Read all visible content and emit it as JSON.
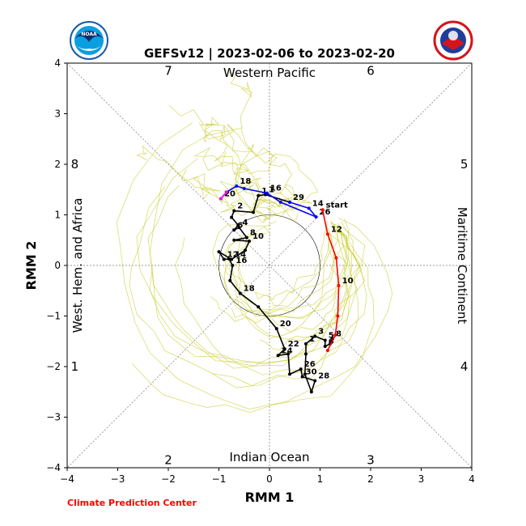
{
  "chart_data": {
    "type": "line",
    "title": "GEFSv12 | 2023-02-06 to 2023-02-20",
    "xlabel": "RMM 1",
    "ylabel": "RMM 2",
    "xlim": [
      -4,
      4
    ],
    "ylim": [
      -4,
      4
    ],
    "xticks": [
      "−4",
      "−3",
      "−2",
      "−1",
      "0",
      "1",
      "2",
      "3",
      "4"
    ],
    "yticks": [
      "−4",
      "−3",
      "−2",
      "−1",
      "0",
      "1",
      "2",
      "3",
      "4"
    ],
    "grid": false,
    "unit_circle_radius": 1,
    "phase_numbers": [
      {
        "label": "7",
        "x": -2.0,
        "y": 3.85
      },
      {
        "label": "6",
        "x": 2.0,
        "y": 3.85
      },
      {
        "label": "5",
        "x": 3.85,
        "y": 2.0
      },
      {
        "label": "4",
        "x": 3.85,
        "y": -2.0
      },
      {
        "label": "3",
        "x": 2.0,
        "y": -3.85
      },
      {
        "label": "2",
        "x": -2.0,
        "y": -3.85
      },
      {
        "label": "1",
        "x": -3.85,
        "y": -2.0
      },
      {
        "label": "8",
        "x": -3.85,
        "y": 2.0
      }
    ],
    "region_labels": {
      "top": "Western Pacific",
      "bottom": "Indian Ocean",
      "left": "West. Hem. and Africa",
      "right": "Maritime Continent"
    },
    "series": [
      {
        "color": "#000000",
        "points": [
          {
            "x": 0.4,
            "y": 1.25,
            "label": "29"
          },
          {
            "x": -0.08,
            "y": 1.4,
            "label": "1"
          },
          {
            "x": -0.22,
            "y": 1.38,
            "label": "1"
          },
          {
            "x": -0.32,
            "y": 1.05,
            "label": ""
          },
          {
            "x": -0.7,
            "y": 1.08,
            "label": "2"
          },
          {
            "x": -0.75,
            "y": 0.95,
            "label": ""
          },
          {
            "x": -0.62,
            "y": 0.8,
            "label": ""
          },
          {
            "x": -0.7,
            "y": 0.7,
            "label": "6"
          },
          {
            "x": -0.6,
            "y": 0.75,
            "label": "4"
          },
          {
            "x": -0.45,
            "y": 0.55,
            "label": "8"
          },
          {
            "x": -0.7,
            "y": 0.5,
            "label": ""
          },
          {
            "x": -0.4,
            "y": 0.48,
            "label": "10"
          },
          {
            "x": -0.48,
            "y": 0.3,
            "label": ""
          },
          {
            "x": -0.75,
            "y": 0.12,
            "label": "14"
          },
          {
            "x": -1.0,
            "y": 0.27,
            "label": ""
          },
          {
            "x": -0.9,
            "y": 0.12,
            "label": "12"
          },
          {
            "x": -0.8,
            "y": 0.13,
            "label": ""
          },
          {
            "x": -0.73,
            "y": 0.0,
            "label": "16"
          },
          {
            "x": -0.78,
            "y": -0.3,
            "label": ""
          },
          {
            "x": -0.58,
            "y": -0.55,
            "label": "18"
          },
          {
            "x": -0.22,
            "y": -0.82,
            "label": ""
          },
          {
            "x": 0.14,
            "y": -1.25,
            "label": "20"
          },
          {
            "x": 0.3,
            "y": -1.65,
            "label": "22"
          },
          {
            "x": 0.17,
            "y": -1.78,
            "label": "24"
          },
          {
            "x": 0.37,
            "y": -1.75,
            "label": ""
          },
          {
            "x": 0.4,
            "y": -2.15,
            "label": ""
          },
          {
            "x": 0.62,
            "y": -2.05,
            "label": "26"
          },
          {
            "x": 0.65,
            "y": -2.2,
            "label": "30"
          },
          {
            "x": 0.9,
            "y": -2.28,
            "label": "28"
          },
          {
            "x": 0.83,
            "y": -2.5,
            "label": ""
          },
          {
            "x": 0.7,
            "y": -2.15,
            "label": ""
          },
          {
            "x": 0.72,
            "y": -1.75,
            "label": ""
          },
          {
            "x": 0.72,
            "y": -1.55,
            "label": "1"
          },
          {
            "x": 0.9,
            "y": -1.4,
            "label": "3"
          },
          {
            "x": 1.1,
            "y": -1.48,
            "label": "5"
          },
          {
            "x": 1.1,
            "y": -1.6,
            "label": "6"
          },
          {
            "x": 1.2,
            "y": -1.55,
            "label": ""
          },
          {
            "x": 1.25,
            "y": -1.45,
            "label": "8"
          }
        ]
      },
      {
        "color": "#0000ff",
        "points": [
          {
            "x": 0.4,
            "y": 1.25,
            "label": ""
          },
          {
            "x": 0.78,
            "y": 1.13,
            "label": "14"
          },
          {
            "x": 0.92,
            "y": 0.96,
            "label": "26"
          },
          {
            "x": 0.22,
            "y": 1.25,
            "label": ""
          },
          {
            "x": -0.05,
            "y": 1.43,
            "label": "16"
          },
          {
            "x": -0.5,
            "y": 1.52,
            "label": ""
          },
          {
            "x": -0.65,
            "y": 1.57,
            "label": "18"
          },
          {
            "x": -0.85,
            "y": 1.45,
            "label": ""
          },
          {
            "x": -0.96,
            "y": 1.32,
            "label": "20"
          }
        ]
      },
      {
        "color": "#ff00ff",
        "points": [
          {
            "x": -0.85,
            "y": 1.45,
            "label": ""
          },
          {
            "x": -0.96,
            "y": 1.32,
            "label": ""
          }
        ]
      },
      {
        "color": "#ff0000",
        "points": [
          {
            "x": 1.05,
            "y": 1.1,
            "label": "start"
          },
          {
            "x": 1.15,
            "y": 0.62,
            "label": "12"
          },
          {
            "x": 1.32,
            "y": 0.15,
            "label": ""
          },
          {
            "x": 1.37,
            "y": -0.4,
            "label": "10"
          },
          {
            "x": 1.35,
            "y": -1.0,
            "label": ""
          },
          {
            "x": 1.3,
            "y": -1.38,
            "label": ""
          },
          {
            "x": 1.15,
            "y": -1.68,
            "label": ""
          }
        ]
      }
    ],
    "ensemble_color": "#c8cc2a"
  },
  "footer": {
    "credit": "Climate Prediction Center",
    "credit_color": "#ff0000"
  },
  "logos": {
    "left": {
      "icon": "noaa-logo",
      "text": "NOAA"
    },
    "right": {
      "icon": "nws-logo",
      "text": "NATIONAL WEATHER SERVICE"
    }
  }
}
